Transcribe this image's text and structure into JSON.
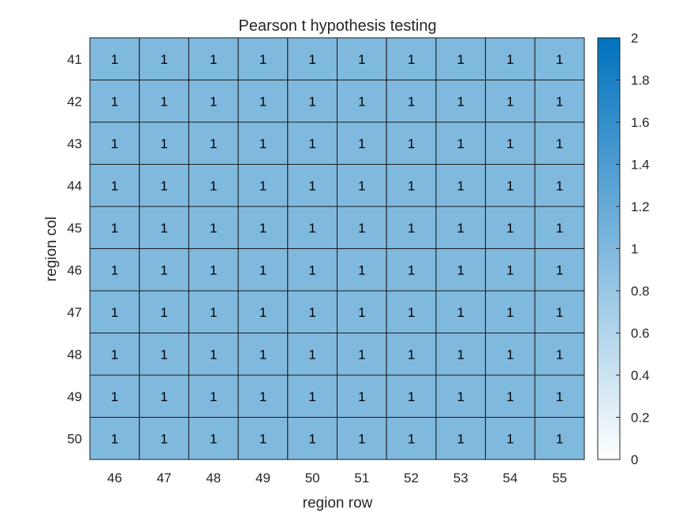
{
  "chart_data": {
    "type": "heatmap",
    "title": "Pearson t hypothesis testing",
    "xlabel": "region row",
    "ylabel": "region col",
    "x_categories": [
      "46",
      "47",
      "48",
      "49",
      "50",
      "51",
      "52",
      "53",
      "54",
      "55"
    ],
    "y_categories": [
      "41",
      "42",
      "43",
      "44",
      "45",
      "46",
      "47",
      "48",
      "49",
      "50"
    ],
    "values": [
      [
        1,
        1,
        1,
        1,
        1,
        1,
        1,
        1,
        1,
        1
      ],
      [
        1,
        1,
        1,
        1,
        1,
        1,
        1,
        1,
        1,
        1
      ],
      [
        1,
        1,
        1,
        1,
        1,
        1,
        1,
        1,
        1,
        1
      ],
      [
        1,
        1,
        1,
        1,
        1,
        1,
        1,
        1,
        1,
        1
      ],
      [
        1,
        1,
        1,
        1,
        1,
        1,
        1,
        1,
        1,
        1
      ],
      [
        1,
        1,
        1,
        1,
        1,
        1,
        1,
        1,
        1,
        1
      ],
      [
        1,
        1,
        1,
        1,
        1,
        1,
        1,
        1,
        1,
        1
      ],
      [
        1,
        1,
        1,
        1,
        1,
        1,
        1,
        1,
        1,
        1
      ],
      [
        1,
        1,
        1,
        1,
        1,
        1,
        1,
        1,
        1,
        1
      ],
      [
        1,
        1,
        1,
        1,
        1,
        1,
        1,
        1,
        1,
        1
      ]
    ],
    "colorbar": {
      "range": [
        0,
        2
      ],
      "ticks": [
        "0",
        "0.2",
        "0.4",
        "0.6",
        "0.8",
        "1",
        "1.2",
        "1.4",
        "1.6",
        "1.8",
        "2"
      ],
      "color_low": "#ffffff",
      "color_high": "#0072bd"
    },
    "cell_border_color": "#1a1a1a"
  }
}
